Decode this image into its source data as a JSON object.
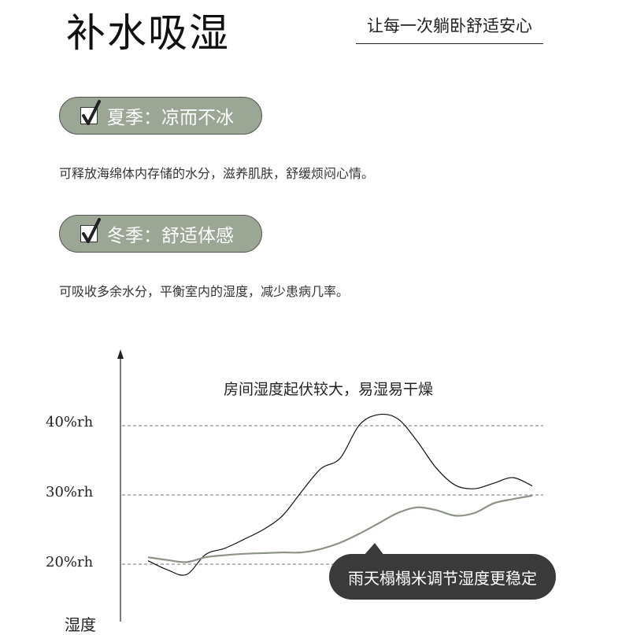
{
  "header": {
    "title": "补水吸湿",
    "subtitle": "让每一次躺卧舒适安心"
  },
  "features": [
    {
      "label": "夏季：凉而不冰",
      "description": "可释放海绵体内存储的水分，滋养肌肤，舒缓烦闷心情。",
      "icon": "checkbox-checked-icon"
    },
    {
      "label": "冬季：舒适体感",
      "description": "可吸收多余水分，平衡室内的湿度，减少患病几率。",
      "icon": "checkbox-checked-icon"
    }
  ],
  "colors": {
    "pill": "#9ba695",
    "callout": "#3a3a3a",
    "room_line": "#111111",
    "tatami_line": "#8a9385"
  },
  "chart_data": {
    "type": "line",
    "title": "房间湿度起伏较大，易湿易干燥",
    "ylabel": "湿度",
    "yticks": [
      "20%rh",
      "30%rh",
      "40%rh"
    ],
    "ytick_values": [
      20,
      30,
      40
    ],
    "ylim": [
      15,
      50
    ],
    "grid": "dashed horizontal at ticks",
    "annotation": "雨天榻榻米调节湿度更稳定",
    "series": [
      {
        "values": [
          20.5,
          19.2,
          18.5,
          21.4,
          22.3,
          23.6,
          25.0,
          27.0,
          30.5,
          33.8,
          35.3,
          40.1,
          41.6,
          41.0,
          37.8,
          33.9,
          31.4,
          30.9,
          31.7,
          32.5,
          31.3
        ]
      },
      {
        "values": [
          21.0,
          20.6,
          20.3,
          21.0,
          21.3,
          21.5,
          21.6,
          21.7,
          21.7,
          22.2,
          23.1,
          24.4,
          25.9,
          27.4,
          28.2,
          27.8,
          27.0,
          27.4,
          28.8,
          29.4,
          29.9
        ]
      }
    ]
  }
}
